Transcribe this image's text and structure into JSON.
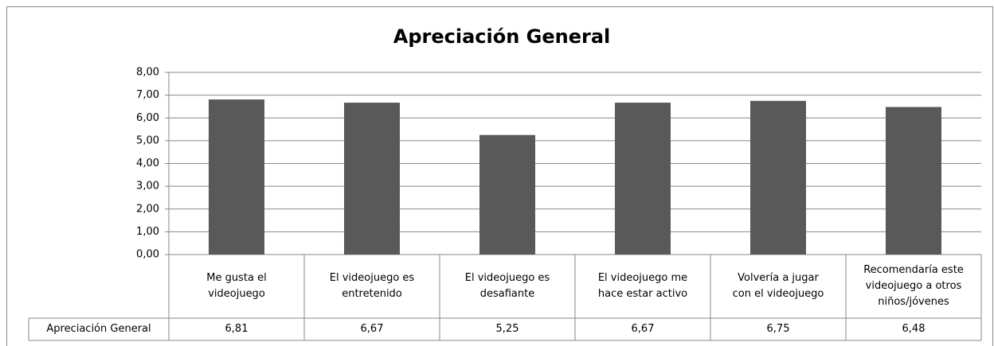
{
  "chart_data": {
    "type": "bar",
    "title": "Apreciación General",
    "categories": [
      "Me gusta el videojuego",
      "El videojuego es entretenido",
      "El videojuego es desafiante",
      "El videojuego me hace estar activo",
      "Volvería a jugar con el videojuego",
      "Recomendaría este videojuego a otros niños/jóvenes"
    ],
    "series": [
      {
        "name": "Apreciación General",
        "color": "#595959",
        "values": [
          6.81,
          6.67,
          5.25,
          6.67,
          6.75,
          6.48
        ],
        "value_labels": [
          "6,81",
          "6,67",
          "5,25",
          "6,67",
          "6,75",
          "6,48"
        ]
      }
    ],
    "ylim": [
      0,
      8
    ],
    "yticks": [
      {
        "value": 0,
        "label": "0,00"
      },
      {
        "value": 1,
        "label": "1,00"
      },
      {
        "value": 2,
        "label": "2,00"
      },
      {
        "value": 3,
        "label": "3,00"
      },
      {
        "value": 4,
        "label": "4,00"
      },
      {
        "value": 5,
        "label": "5,00"
      },
      {
        "value": 6,
        "label": "6,00"
      },
      {
        "value": 7,
        "label": "7,00"
      },
      {
        "value": 8,
        "label": "8,00"
      }
    ],
    "grid": true
  }
}
